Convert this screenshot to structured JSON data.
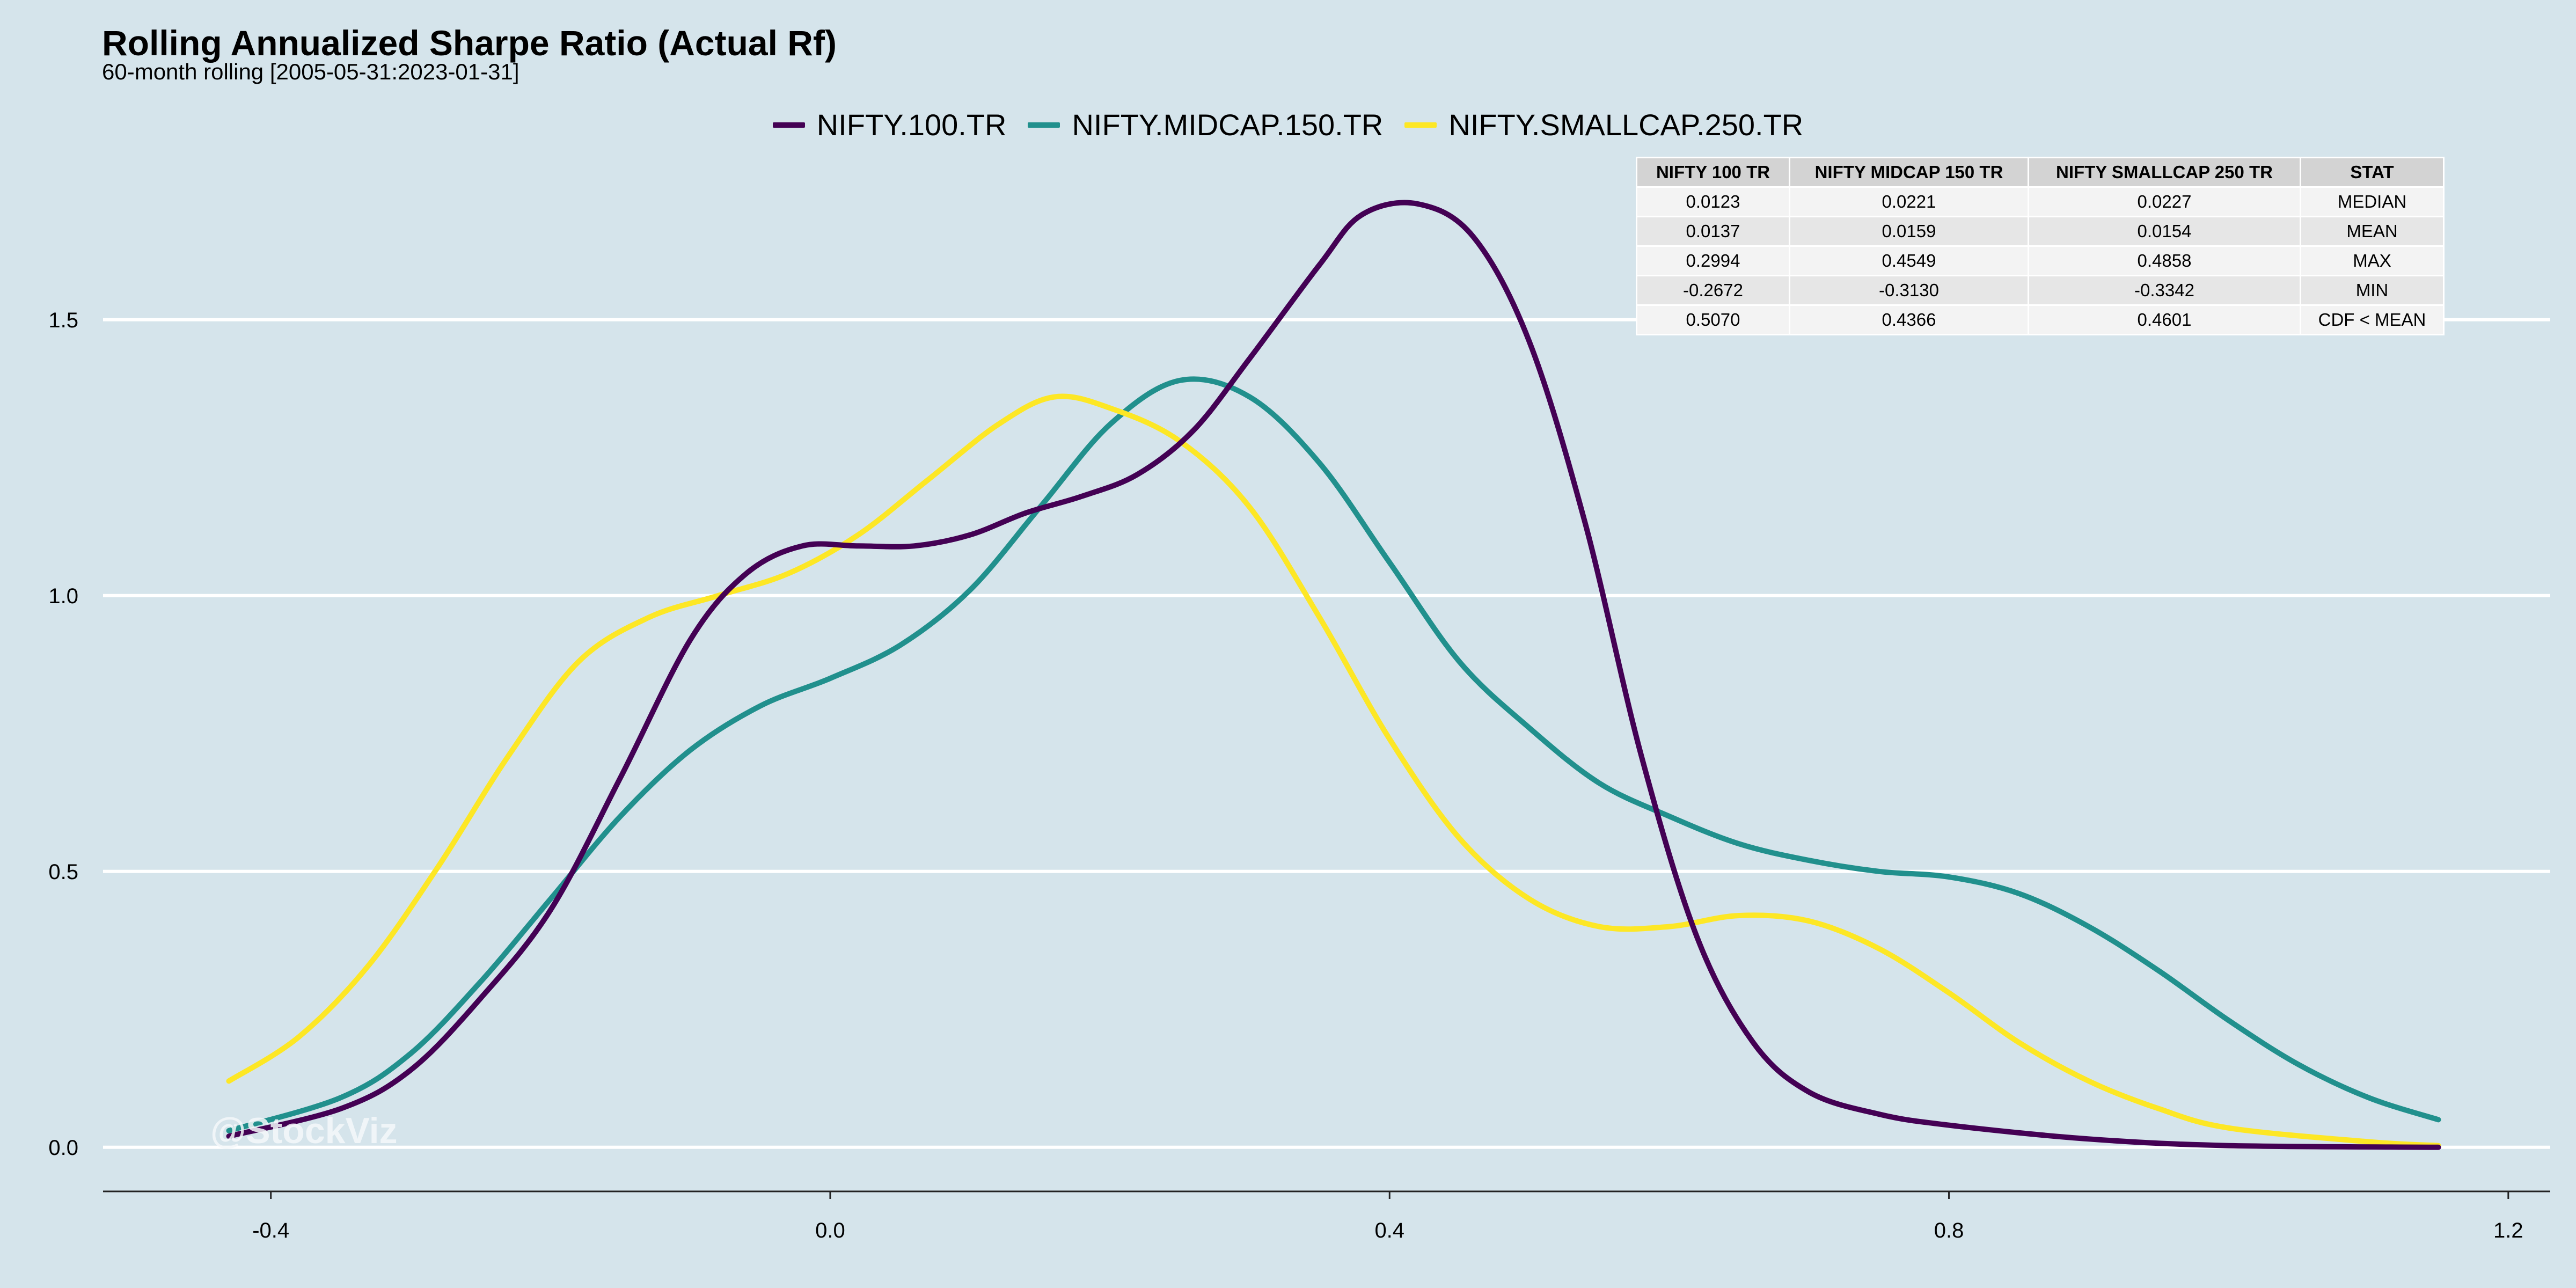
{
  "chart_data": {
    "type": "line",
    "title": "Rolling Annualized Sharpe Ratio (Actual Rf)",
    "subtitle": "60-month rolling [2005-05-31:2023-01-31]",
    "xlabel": "",
    "ylabel": "",
    "xlim": [
      -0.52,
      1.23
    ],
    "ylim": [
      -0.08,
      1.85
    ],
    "x_ticks": [
      -0.4,
      0.0,
      0.4,
      0.8,
      1.2
    ],
    "x_tick_labels": [
      "-0.4",
      "0.0",
      "0.4",
      "0.8",
      "1.2"
    ],
    "y_ticks": [
      0.0,
      0.5,
      1.0,
      1.5
    ],
    "y_tick_labels": [
      "0.0",
      "0.5",
      "1.0",
      "1.5"
    ],
    "grid": "horizontal major lines only",
    "legend_position": "top",
    "series": [
      {
        "name": "NIFTY.100.TR",
        "color": "#440154",
        "points": [
          [
            -0.43,
            0.02
          ],
          [
            -0.35,
            0.07
          ],
          [
            -0.3,
            0.14
          ],
          [
            -0.25,
            0.27
          ],
          [
            -0.2,
            0.43
          ],
          [
            -0.15,
            0.67
          ],
          [
            -0.1,
            0.92
          ],
          [
            -0.06,
            1.04
          ],
          [
            -0.02,
            1.09
          ],
          [
            0.02,
            1.09
          ],
          [
            0.06,
            1.09
          ],
          [
            0.1,
            1.11
          ],
          [
            0.14,
            1.15
          ],
          [
            0.18,
            1.18
          ],
          [
            0.22,
            1.22
          ],
          [
            0.26,
            1.3
          ],
          [
            0.3,
            1.43
          ],
          [
            0.35,
            1.6
          ],
          [
            0.38,
            1.69
          ],
          [
            0.42,
            1.71
          ],
          [
            0.46,
            1.65
          ],
          [
            0.5,
            1.46
          ],
          [
            0.54,
            1.13
          ],
          [
            0.58,
            0.71
          ],
          [
            0.62,
            0.38
          ],
          [
            0.66,
            0.19
          ],
          [
            0.7,
            0.1
          ],
          [
            0.75,
            0.06
          ],
          [
            0.8,
            0.04
          ],
          [
            0.9,
            0.015
          ],
          [
            1.0,
            0.003
          ],
          [
            1.15,
            0.0
          ]
        ]
      },
      {
        "name": "NIFTY.MIDCAP.150.TR",
        "color": "#21908d",
        "points": [
          [
            -0.43,
            0.03
          ],
          [
            -0.35,
            0.09
          ],
          [
            -0.3,
            0.17
          ],
          [
            -0.25,
            0.3
          ],
          [
            -0.2,
            0.45
          ],
          [
            -0.15,
            0.6
          ],
          [
            -0.1,
            0.72
          ],
          [
            -0.05,
            0.8
          ],
          [
            0.0,
            0.85
          ],
          [
            0.05,
            0.91
          ],
          [
            0.1,
            1.01
          ],
          [
            0.15,
            1.16
          ],
          [
            0.2,
            1.31
          ],
          [
            0.25,
            1.39
          ],
          [
            0.3,
            1.36
          ],
          [
            0.35,
            1.24
          ],
          [
            0.4,
            1.06
          ],
          [
            0.45,
            0.88
          ],
          [
            0.5,
            0.76
          ],
          [
            0.55,
            0.66
          ],
          [
            0.6,
            0.6
          ],
          [
            0.65,
            0.55
          ],
          [
            0.7,
            0.52
          ],
          [
            0.75,
            0.5
          ],
          [
            0.8,
            0.49
          ],
          [
            0.85,
            0.46
          ],
          [
            0.9,
            0.4
          ],
          [
            0.95,
            0.32
          ],
          [
            1.0,
            0.23
          ],
          [
            1.05,
            0.15
          ],
          [
            1.1,
            0.09
          ],
          [
            1.15,
            0.05
          ]
        ]
      },
      {
        "name": "NIFTY.SMALLCAP.250.TR",
        "color": "#fde725",
        "points": [
          [
            -0.43,
            0.12
          ],
          [
            -0.38,
            0.2
          ],
          [
            -0.33,
            0.33
          ],
          [
            -0.28,
            0.51
          ],
          [
            -0.23,
            0.71
          ],
          [
            -0.18,
            0.88
          ],
          [
            -0.13,
            0.96
          ],
          [
            -0.08,
            1.0
          ],
          [
            -0.03,
            1.04
          ],
          [
            0.02,
            1.11
          ],
          [
            0.07,
            1.21
          ],
          [
            0.12,
            1.31
          ],
          [
            0.16,
            1.36
          ],
          [
            0.2,
            1.34
          ],
          [
            0.25,
            1.28
          ],
          [
            0.3,
            1.16
          ],
          [
            0.35,
            0.96
          ],
          [
            0.4,
            0.74
          ],
          [
            0.45,
            0.56
          ],
          [
            0.5,
            0.45
          ],
          [
            0.55,
            0.4
          ],
          [
            0.6,
            0.4
          ],
          [
            0.65,
            0.42
          ],
          [
            0.7,
            0.41
          ],
          [
            0.75,
            0.36
          ],
          [
            0.8,
            0.28
          ],
          [
            0.85,
            0.19
          ],
          [
            0.9,
            0.12
          ],
          [
            0.95,
            0.07
          ],
          [
            1.0,
            0.035
          ],
          [
            1.1,
            0.01
          ],
          [
            1.15,
            0.003
          ]
        ]
      }
    ],
    "annotations": [
      "@StockViz"
    ]
  },
  "legend": [
    {
      "label": "NIFTY.100.TR",
      "color": "#440154"
    },
    {
      "label": "NIFTY.MIDCAP.150.TR",
      "color": "#21908d"
    },
    {
      "label": "NIFTY.SMALLCAP.250.TR",
      "color": "#fde725"
    }
  ],
  "stats_table": {
    "headers": [
      "NIFTY 100 TR",
      "NIFTY MIDCAP 150 TR",
      "NIFTY SMALLCAP 250 TR",
      "STAT"
    ],
    "rows": [
      [
        "0.0123",
        "0.0221",
        "0.0227",
        "MEDIAN"
      ],
      [
        "0.0137",
        "0.0159",
        "0.0154",
        "MEAN"
      ],
      [
        "0.2994",
        "0.4549",
        "0.4858",
        "MAX"
      ],
      [
        "-0.2672",
        "-0.3130",
        "-0.3342",
        "MIN"
      ],
      [
        "0.5070",
        "0.4366",
        "0.4601",
        "CDF < MEAN"
      ]
    ]
  },
  "watermark": "@StockViz"
}
